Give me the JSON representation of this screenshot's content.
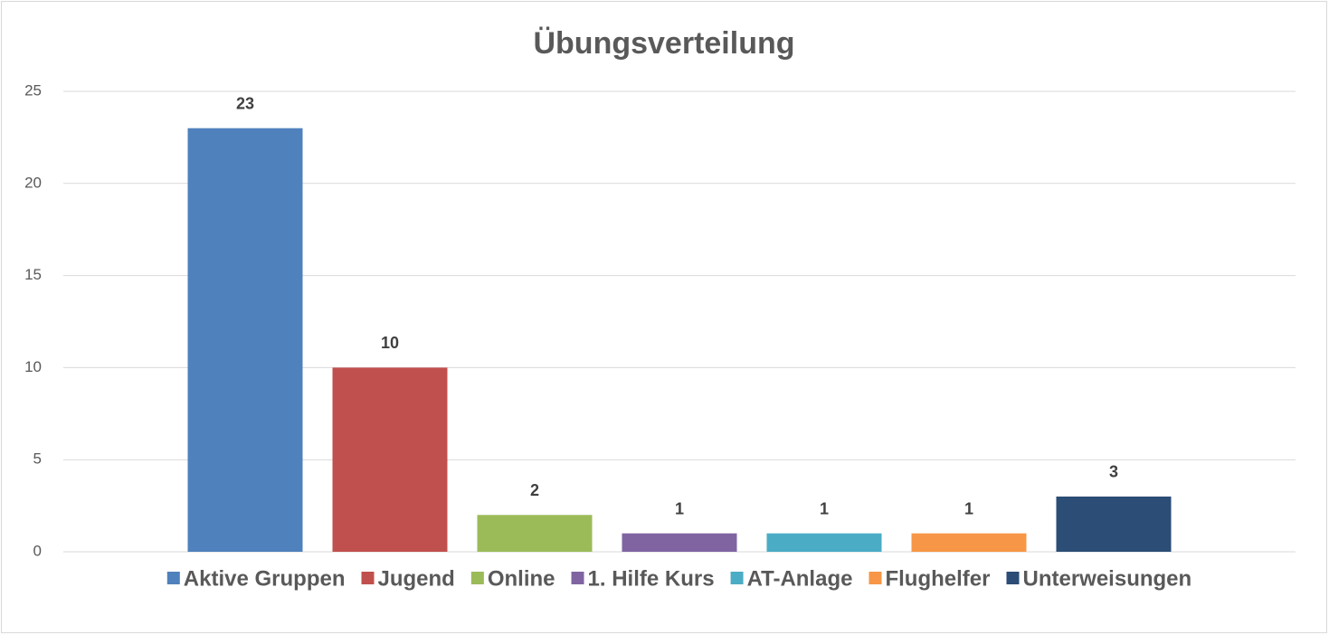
{
  "chart_data": {
    "type": "bar",
    "title": "Übungsverteilung",
    "categories": [
      null
    ],
    "series": [
      {
        "name": "Aktive Gruppen",
        "color": "#4f81bd",
        "values": [
          23
        ]
      },
      {
        "name": "Jugend",
        "color": "#c0504d",
        "values": [
          10
        ]
      },
      {
        "name": "Online",
        "color": "#9bbb59",
        "values": [
          2
        ]
      },
      {
        "name": "1. Hilfe Kurs",
        "color": "#8064a2",
        "values": [
          1
        ]
      },
      {
        "name": "AT-Anlage",
        "color": "#4bacc6",
        "values": [
          1
        ]
      },
      {
        "name": "Flughelfer",
        "color": "#f79646",
        "values": [
          1
        ]
      },
      {
        "name": "Unterweisungen",
        "color": "#2c4d75",
        "values": [
          3
        ]
      }
    ],
    "ylim": [
      0,
      25
    ],
    "yticks": [
      0,
      5,
      10,
      15,
      20,
      25
    ],
    "grid": true,
    "legend": "bottom"
  }
}
